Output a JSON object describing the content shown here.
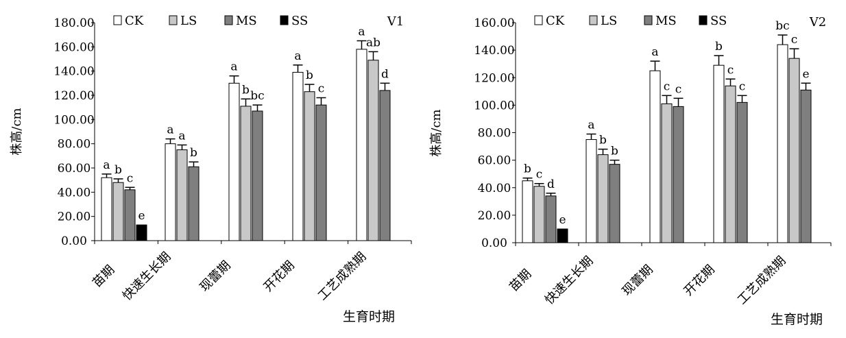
{
  "chart_data": [
    {
      "type": "bar",
      "panel_label": "V1",
      "ylabel": "株高/cm",
      "xlabel": "生育时期",
      "ylim": [
        0,
        180
      ],
      "y_ticks": [
        "0.00",
        "20.00",
        "40.00",
        "60.00",
        "80.00",
        "100.00",
        "120.00",
        "140.00",
        "160.00",
        "180.00"
      ],
      "categories": [
        "苗期",
        "快速生长期",
        "现蕾期",
        "开花期",
        "工艺成熟期"
      ],
      "legend_position": "top",
      "series": [
        {
          "name": "CK",
          "color": "#ffffff",
          "values": [
            52,
            80,
            130,
            139,
            158
          ],
          "errors": [
            3,
            4,
            6,
            6,
            7
          ],
          "labels": [
            "a",
            "a",
            "a",
            "a",
            "a"
          ]
        },
        {
          "name": "LS",
          "color": "#c8c8c8",
          "values": [
            48,
            75,
            111,
            123,
            149
          ],
          "errors": [
            3,
            4,
            6,
            6,
            7
          ],
          "labels": [
            "b",
            "a",
            "b",
            "b",
            "ab"
          ]
        },
        {
          "name": "MS",
          "color": "#7f7f7f",
          "values": [
            42,
            61,
            107,
            112,
            124
          ],
          "errors": [
            2,
            4,
            5,
            6,
            6
          ],
          "labels": [
            "c",
            "b",
            "bc",
            "c",
            "d"
          ]
        },
        {
          "name": "SS",
          "color": "#000000",
          "values": [
            13,
            null,
            null,
            null,
            null
          ],
          "errors": [
            0,
            null,
            null,
            null,
            null
          ],
          "labels": [
            "e",
            "",
            "",
            "",
            ""
          ]
        }
      ]
    },
    {
      "type": "bar",
      "panel_label": "V2",
      "ylabel": "株高/cm",
      "xlabel": "生育时期",
      "ylim": [
        0,
        160
      ],
      "y_ticks": [
        "0.00",
        "20.00",
        "40.00",
        "60.00",
        "80.00",
        "100.00",
        "120.00",
        "140.00",
        "160.00"
      ],
      "categories": [
        "苗期",
        "快速生长期",
        "现蕾期",
        "开花期",
        "工艺成熟期"
      ],
      "legend_position": "top",
      "series": [
        {
          "name": "CK",
          "color": "#ffffff",
          "values": [
            45,
            75,
            125,
            129,
            144
          ],
          "errors": [
            2,
            4,
            7,
            7,
            7
          ],
          "labels": [
            "b",
            "a",
            "a",
            "b",
            "bc"
          ]
        },
        {
          "name": "LS",
          "color": "#c8c8c8",
          "values": [
            41,
            64,
            101,
            114,
            134
          ],
          "errors": [
            2,
            4,
            6,
            5,
            7
          ],
          "labels": [
            "c",
            "b",
            "c",
            "c",
            "c"
          ]
        },
        {
          "name": "MS",
          "color": "#7f7f7f",
          "values": [
            34,
            57,
            99,
            102,
            111
          ],
          "errors": [
            2,
            3,
            6,
            5,
            5
          ],
          "labels": [
            "d",
            "b",
            "c",
            "c",
            "e"
          ]
        },
        {
          "name": "SS",
          "color": "#000000",
          "values": [
            10,
            null,
            null,
            null,
            null
          ],
          "errors": [
            0,
            null,
            null,
            null,
            null
          ],
          "labels": [
            "e",
            "",
            "",
            "",
            ""
          ]
        }
      ]
    }
  ]
}
